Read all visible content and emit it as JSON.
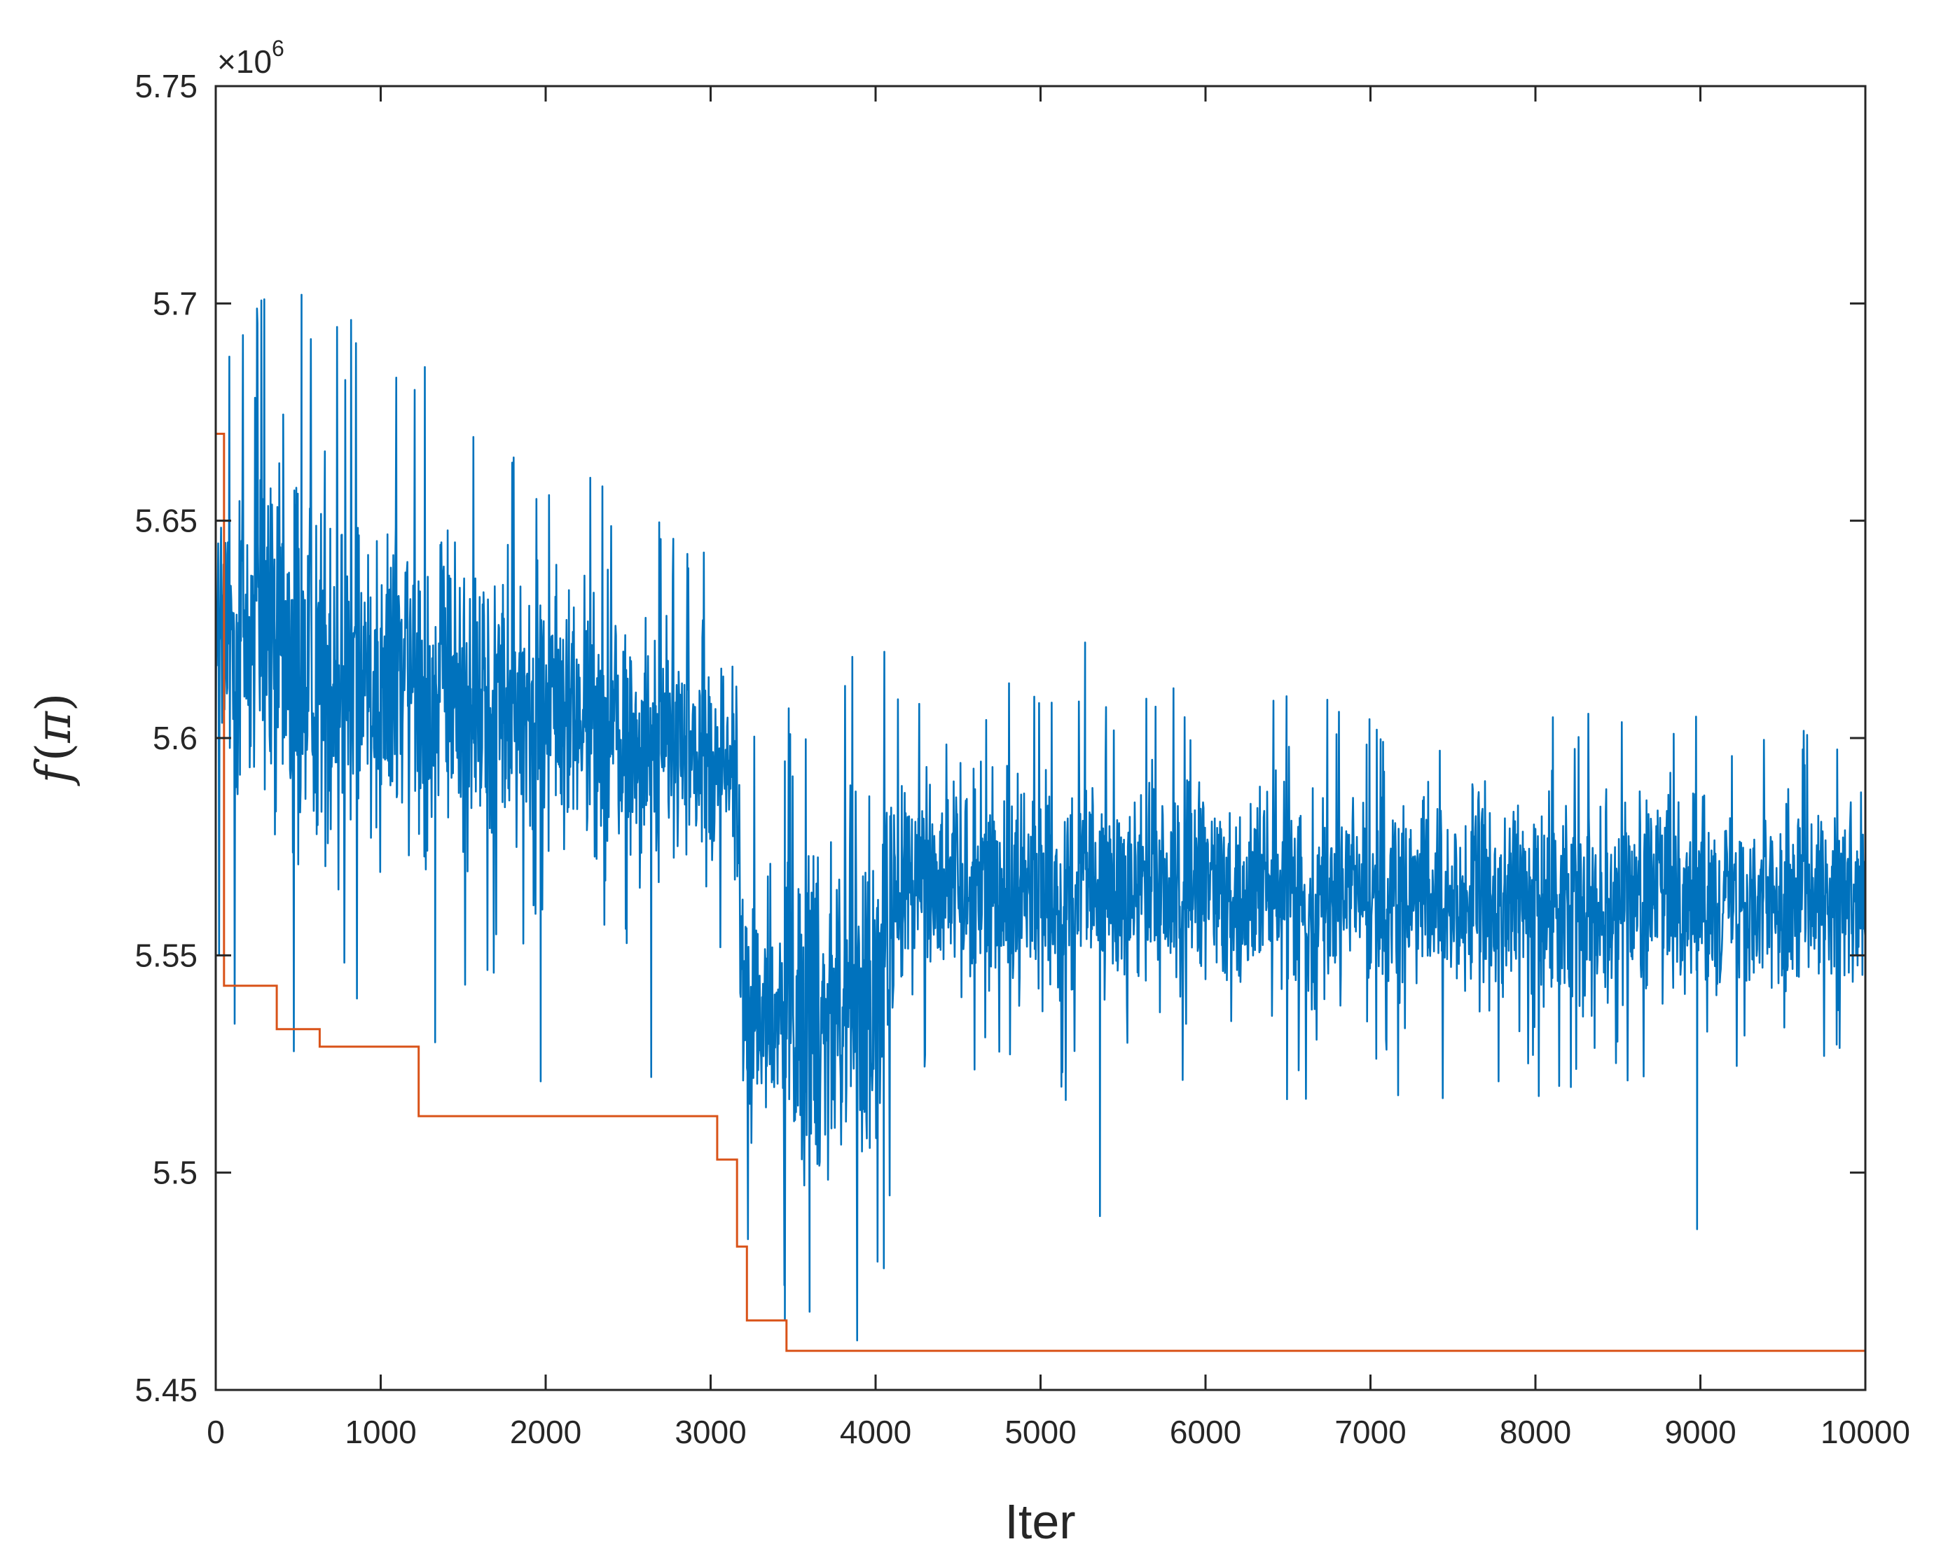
{
  "chart_data": {
    "type": "line",
    "xlabel": "Iter",
    "ylabel": "f(π)",
    "ylabel_parts": {
      "f": "f",
      "open": "(",
      "pi": "π",
      "close": ")"
    },
    "y_exponent": {
      "base": "×10",
      "power": "6"
    },
    "xlim": [
      0,
      10000
    ],
    "ylim": [
      5.45,
      5.75
    ],
    "x_ticks": [
      0,
      1000,
      2000,
      3000,
      4000,
      5000,
      6000,
      7000,
      8000,
      9000,
      10000
    ],
    "x_tick_labels": [
      "0",
      "1000",
      "2000",
      "3000",
      "4000",
      "5000",
      "6000",
      "7000",
      "8000",
      "9000",
      "10000"
    ],
    "y_ticks": [
      5.45,
      5.5,
      5.55,
      5.6,
      5.65,
      5.7,
      5.75
    ],
    "y_tick_labels": [
      "5.45",
      "5.5",
      "5.55",
      "5.6",
      "5.65",
      "5.7",
      "5.75"
    ],
    "grid": false,
    "legend": "none",
    "series": [
      {
        "color": "#0072BD",
        "style": "noisy-trace",
        "envelope": {
          "x": [
            0,
            200,
            500,
            1000,
            1500,
            2000,
            2500,
            3000,
            3150,
            3200,
            3400,
            3700,
            4000,
            4200,
            4500,
            5000,
            6000,
            7000,
            8000,
            9000,
            10000
          ],
          "lower": [
            5.56,
            5.555,
            5.553,
            5.56,
            5.56,
            5.565,
            5.56,
            5.56,
            5.57,
            5.49,
            5.485,
            5.48,
            5.485,
            5.535,
            5.535,
            5.53,
            5.53,
            5.53,
            5.53,
            5.535,
            5.535
          ],
          "upper": [
            5.68,
            5.69,
            5.68,
            5.67,
            5.66,
            5.65,
            5.64,
            5.63,
            5.62,
            5.58,
            5.59,
            5.6,
            5.6,
            5.605,
            5.6,
            5.6,
            5.6,
            5.595,
            5.595,
            5.595,
            5.59
          ]
        },
        "extremes": [
          {
            "x": 520,
            "y": 5.702
          },
          {
            "x": 5270,
            "y": 5.622
          },
          {
            "x": 3450,
            "y": 5.466
          },
          {
            "x": 3600,
            "y": 5.468
          },
          {
            "x": 5360,
            "y": 5.49
          },
          {
            "x": 8980,
            "y": 5.487
          },
          {
            "x": 4050,
            "y": 5.478
          },
          {
            "x": 1330,
            "y": 5.53
          },
          {
            "x": 1970,
            "y": 5.521
          },
          {
            "x": 2640,
            "y": 5.522
          }
        ]
      },
      {
        "color": "#D95319",
        "style": "step",
        "x": [
          0,
          50,
          370,
          630,
          1230,
          3040,
          3160,
          3220,
          3460,
          10000
        ],
        "y": [
          5.67,
          5.543,
          5.533,
          5.529,
          5.513,
          5.503,
          5.483,
          5.466,
          5.459,
          5.459
        ]
      }
    ]
  }
}
